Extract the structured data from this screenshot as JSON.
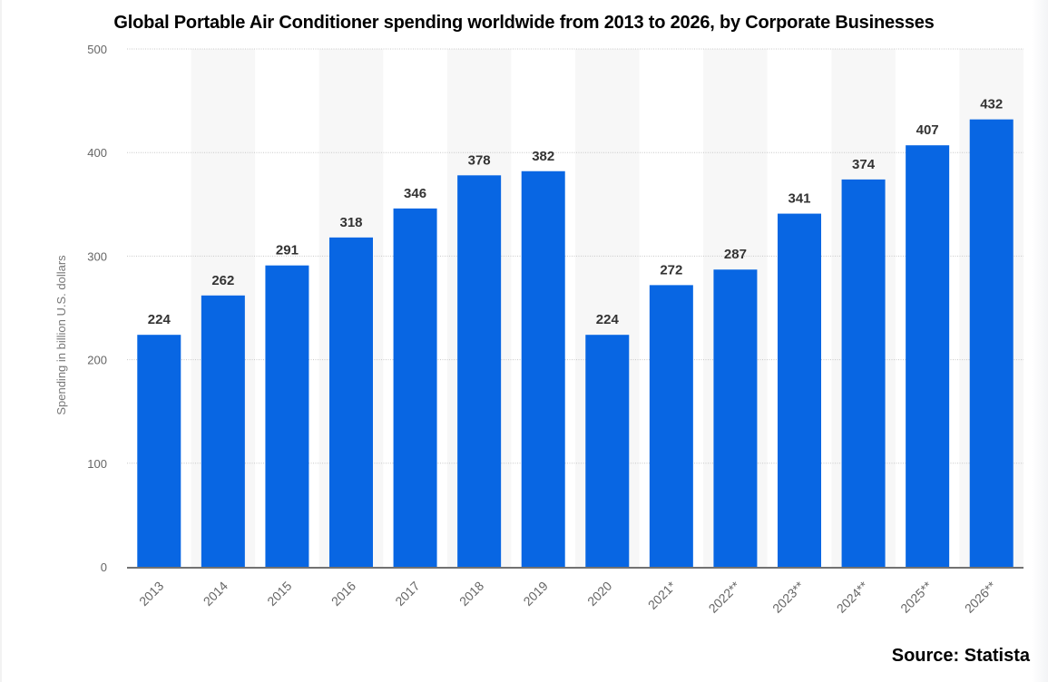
{
  "chart_data": {
    "type": "bar",
    "title": "Global Portable Air Conditioner spending worldwide from 2013 to 2026, by Corporate Businesses",
    "xlabel": "",
    "ylabel": "Spending in billion U.S. dollars",
    "categories": [
      "2013",
      "2014",
      "2015",
      "2016",
      "2017",
      "2018",
      "2019",
      "2020",
      "2021*",
      "2022**",
      "2023**",
      "2024**",
      "2025**",
      "2026**"
    ],
    "values": [
      224,
      262,
      291,
      318,
      346,
      378,
      382,
      224,
      272,
      287,
      341,
      374,
      407,
      432
    ],
    "data_labels": [
      "224",
      "262",
      "291",
      "318",
      "346",
      "378",
      "382",
      "224",
      "272",
      "287",
      "341",
      "374",
      "407",
      "432"
    ],
    "ylim": [
      0,
      500
    ],
    "yticks": [
      0,
      100,
      200,
      300,
      400,
      500
    ],
    "ytick_labels": [
      "0",
      "100",
      "200",
      "300",
      "400",
      "500"
    ],
    "grid": true,
    "bar_color": "#0866e3",
    "source": "Source: Statista"
  }
}
